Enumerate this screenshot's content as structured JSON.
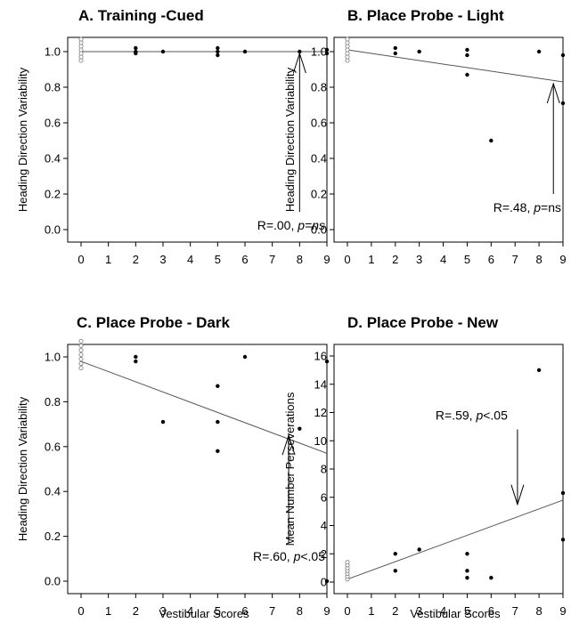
{
  "chart_data": [
    {
      "type": "scatter",
      "title": "A. Training -Cued",
      "ylabel": "Heading Direction Variability",
      "xlabel": "",
      "xlim": [
        0,
        9
      ],
      "ylim": [
        0,
        1.0
      ],
      "xticks": [
        0,
        1,
        2,
        3,
        4,
        5,
        6,
        7,
        8,
        9
      ],
      "yticks": [
        "0.0",
        "0.2",
        "0.4",
        "0.6",
        "0.8",
        "1.0"
      ],
      "control_points": {
        "x": 0,
        "y": [
          0.95,
          0.97,
          0.99,
          1.01,
          1.03,
          1.05,
          1.07
        ]
      },
      "points": [
        [
          2,
          0.99
        ],
        [
          2,
          1.0
        ],
        [
          2,
          1.02
        ],
        [
          3,
          1.0
        ],
        [
          5,
          0.98
        ],
        [
          5,
          1.0
        ],
        [
          5,
          1.02
        ],
        [
          6,
          1.0
        ],
        [
          8,
          1.0
        ],
        [
          9,
          0.99
        ],
        [
          9,
          1.01
        ]
      ],
      "fit_line": [
        [
          0,
          1.0
        ],
        [
          9,
          1.0
        ]
      ],
      "annotation": {
        "prefix": "R=.00, ",
        "p_label": "p",
        "suffix": "=ns",
        "suffix_italic": true,
        "arrow_x": 8,
        "arrow_from_y": 0.1,
        "arrow_to_y": 0.99
      }
    },
    {
      "type": "scatter",
      "title": "B. Place Probe - Light",
      "ylabel": "Heading Direction Variability",
      "xlabel": "",
      "xlim": [
        0,
        9
      ],
      "ylim": [
        0,
        1.0
      ],
      "xticks": [
        0,
        1,
        2,
        3,
        4,
        5,
        6,
        7,
        8,
        9
      ],
      "yticks": [
        "0.0",
        "0.2",
        "0.4",
        "0.6",
        "0.8",
        "1.0"
      ],
      "control_points": {
        "x": 0,
        "y": [
          0.95,
          0.97,
          0.99,
          1.01,
          1.03,
          1.05,
          1.07
        ]
      },
      "points": [
        [
          2,
          0.99
        ],
        [
          2,
          1.02
        ],
        [
          3,
          1.0
        ],
        [
          5,
          0.98
        ],
        [
          5,
          1.01
        ],
        [
          5,
          0.87
        ],
        [
          6,
          0.5
        ],
        [
          8,
          1.0
        ],
        [
          9,
          0.98
        ],
        [
          9,
          0.71
        ]
      ],
      "fit_line": [
        [
          0,
          1.01
        ],
        [
          9,
          0.83
        ]
      ],
      "annotation": {
        "prefix": "R=.48, ",
        "p_label": "p",
        "suffix": "=ns",
        "suffix_italic": false,
        "arrow_x": 8.6,
        "arrow_from_y": 0.2,
        "arrow_to_y": 0.82
      }
    },
    {
      "type": "scatter",
      "title": "C. Place Probe - Dark",
      "ylabel": "Heading Direction Variability",
      "xlabel": "Vestibular Scores",
      "xlim": [
        0,
        9
      ],
      "ylim": [
        0,
        1.0
      ],
      "xticks": [
        0,
        1,
        2,
        3,
        4,
        5,
        6,
        7,
        8,
        9
      ],
      "yticks": [
        "0.0",
        "0.2",
        "0.4",
        "0.6",
        "0.8",
        "1.0"
      ],
      "control_points": {
        "x": 0,
        "y": [
          0.95,
          0.97,
          0.99,
          1.01,
          1.03,
          1.05,
          1.07
        ]
      },
      "points": [
        [
          2,
          0.98
        ],
        [
          2,
          1.0
        ],
        [
          3,
          0.71
        ],
        [
          5,
          0.87
        ],
        [
          5,
          0.71
        ],
        [
          5,
          0.58
        ],
        [
          6,
          1.0
        ],
        [
          8,
          0.68
        ],
        [
          9,
          0.98
        ],
        [
          9,
          0.0
        ]
      ],
      "fit_line": [
        [
          0,
          0.98
        ],
        [
          9,
          0.57
        ]
      ],
      "annotation": {
        "prefix": "R=.60, ",
        "p_label": "p",
        "suffix": "<.05",
        "suffix_italic": false,
        "arrow_x": 7.6,
        "arrow_from_y": 0.17,
        "arrow_to_y": 0.65
      }
    },
    {
      "type": "scatter",
      "title": "D. Place Probe - New",
      "ylabel": "Mean Number Perseverations",
      "xlabel": "Vestibular Scores",
      "xlim": [
        0,
        9
      ],
      "ylim": [
        0,
        16
      ],
      "xticks": [
        0,
        1,
        2,
        3,
        4,
        5,
        6,
        7,
        8,
        9
      ],
      "yticks": [
        "0",
        "2",
        "4",
        "6",
        "8",
        "10",
        "12",
        "14",
        "16"
      ],
      "control_points": {
        "x": 0,
        "y": [
          0.2,
          0.4,
          0.6,
          0.8,
          1.0,
          1.2,
          1.4
        ]
      },
      "points": [
        [
          2,
          2.0
        ],
        [
          2,
          0.8
        ],
        [
          3,
          2.3
        ],
        [
          5,
          2.0
        ],
        [
          5,
          0.8
        ],
        [
          5,
          0.3
        ],
        [
          6,
          0.3
        ],
        [
          8,
          15.0
        ],
        [
          9,
          6.3
        ],
        [
          9,
          3.0
        ]
      ],
      "fit_line": [
        [
          0,
          0.2
        ],
        [
          9,
          5.8
        ]
      ],
      "annotation": {
        "prefix": "R=.59, ",
        "p_label": "p",
        "suffix": "<.05",
        "suffix_italic": false,
        "arrow_x": 7.1,
        "arrow_from_y": 10.8,
        "arrow_to_y": 5.5
      }
    }
  ]
}
